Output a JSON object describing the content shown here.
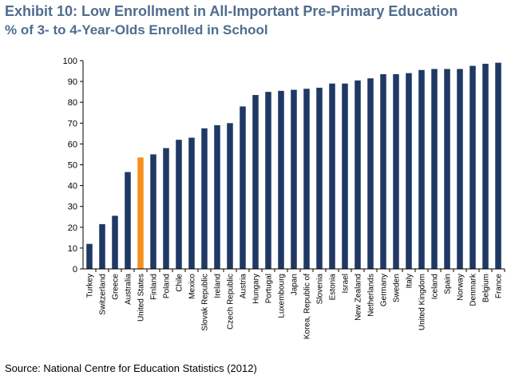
{
  "header": {
    "title": "Exhibit 10: Low Enrollment in All-Important Pre-Primary Education",
    "subtitle": "% of 3- to 4-Year-Olds Enrolled in School"
  },
  "footer": {
    "source": "Source:  National Centre for Education Statistics (2012)"
  },
  "colors": {
    "bar": "#1f3864",
    "highlight": "#f5901e"
  },
  "chart_data": {
    "type": "bar",
    "categories": [
      "Turkey",
      "Switzerland",
      "Greece",
      "Australia",
      "United States",
      "Finland",
      "Poland",
      "Chile",
      "Mexico",
      "Slovak Republic",
      "Ireland",
      "Czech Republic",
      "Austria",
      "Hungary",
      "Portugal",
      "Luxembourg",
      "Japan",
      "Korea, Republic of",
      "Slovenia",
      "Estonia",
      "Israel",
      "New Zealand",
      "Netherlands",
      "Germany",
      "Sweden",
      "Italy",
      "United Kingdom",
      "Iceland",
      "Spain",
      "Norway",
      "Denmark",
      "Belgium",
      "France"
    ],
    "values": [
      12,
      21.5,
      25.5,
      46.5,
      53.5,
      55,
      58,
      62,
      63,
      67.5,
      69,
      70,
      78,
      83.5,
      85,
      85.5,
      86,
      86.5,
      87,
      89,
      89,
      90.5,
      91.5,
      93.5,
      93.5,
      94,
      95.5,
      96,
      96,
      96,
      97.5,
      98.5,
      99
    ],
    "highlight_category": "United States",
    "ylim": [
      0,
      100
    ],
    "yticks": [
      0,
      10,
      20,
      30,
      40,
      50,
      60,
      70,
      80,
      90,
      100
    ],
    "grid": false,
    "legend": "none"
  }
}
